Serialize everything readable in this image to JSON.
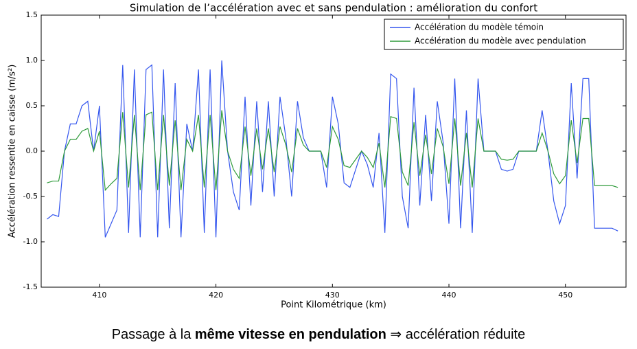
{
  "chart_data": {
    "type": "line",
    "title": "Simulation de l’accélération avec et sans pendulation : amélioration du confort",
    "xlabel": "Point Kilométrique (km)",
    "ylabel": "Accélération ressentie en caisse (m/s²)",
    "x": [
      405.5,
      406,
      406.5,
      407,
      407.5,
      408,
      408.5,
      409,
      409.5,
      410,
      410.5,
      411,
      411.5,
      412,
      412.5,
      413,
      413.5,
      414,
      414.5,
      415,
      415.5,
      416,
      416.5,
      417,
      417.5,
      418,
      418.5,
      419,
      419.5,
      420,
      420.5,
      421,
      421.5,
      422,
      422.5,
      423,
      423.5,
      424,
      424.5,
      425,
      425.5,
      426,
      426.5,
      427,
      427.5,
      428,
      428.5,
      429,
      429.5,
      430,
      430.5,
      431,
      431.5,
      432,
      432.5,
      433,
      433.5,
      434,
      434.5,
      435,
      435.5,
      436,
      436.5,
      437,
      437.5,
      438,
      438.5,
      439,
      439.5,
      440,
      440.5,
      441,
      441.5,
      442,
      442.5,
      443,
      443.5,
      444,
      444.5,
      445,
      445.5,
      446,
      446.5,
      447,
      447.5,
      448,
      448.5,
      449,
      449.5,
      450,
      450.5,
      451,
      451.5,
      452,
      452.5,
      453,
      453.5,
      454,
      454.5
    ],
    "series": [
      {
        "name": "Accélération du modèle témoin",
        "color": "#3355ee",
        "values": [
          -0.75,
          -0.7,
          -0.72,
          0,
          0.3,
          0.3,
          0.5,
          0.55,
          0,
          0.5,
          -0.95,
          -0.8,
          -0.65,
          0.95,
          -0.9,
          0.9,
          -0.95,
          0.9,
          0.95,
          -0.95,
          0.9,
          -0.85,
          0.75,
          -0.95,
          0.3,
          0,
          0.9,
          -0.9,
          0.9,
          -0.95,
          1.0,
          0,
          -0.45,
          -0.65,
          0.6,
          -0.6,
          0.55,
          -0.45,
          0.55,
          -0.5,
          0.6,
          0.15,
          -0.5,
          0.55,
          0.15,
          0,
          0,
          0,
          -0.4,
          0.6,
          0.3,
          -0.35,
          -0.4,
          -0.2,
          0,
          -0.15,
          -0.4,
          0.2,
          -0.9,
          0.85,
          0.8,
          -0.5,
          -0.85,
          0.7,
          -0.6,
          0.4,
          -0.55,
          0.55,
          0.1,
          -0.8,
          0.8,
          -0.85,
          0.45,
          -0.9,
          0.8,
          0,
          0,
          0,
          -0.2,
          -0.22,
          -0.2,
          0,
          0,
          0,
          0,
          0.45,
          0,
          -0.55,
          -0.8,
          -0.6,
          0.75,
          -0.3,
          0.8,
          0.8,
          -0.85,
          -0.85,
          -0.85,
          -0.85,
          -0.88
        ]
      },
      {
        "name": "Accélération du modèle avec pendulation",
        "color": "#2e9a3a",
        "values": [
          -0.35,
          -0.33,
          -0.33,
          0,
          0.13,
          0.13,
          0.22,
          0.25,
          0,
          0.22,
          -0.43,
          -0.36,
          -0.3,
          0.43,
          -0.4,
          0.4,
          -0.43,
          0.4,
          0.43,
          -0.43,
          0.4,
          -0.38,
          0.34,
          -0.43,
          0.13,
          0,
          0.4,
          -0.4,
          0.4,
          -0.43,
          0.45,
          0,
          -0.2,
          -0.3,
          0.27,
          -0.27,
          0.25,
          -0.2,
          0.25,
          -0.23,
          0.27,
          0.07,
          -0.23,
          0.25,
          0.07,
          0,
          0,
          0,
          -0.18,
          0.27,
          0.13,
          -0.16,
          -0.18,
          -0.09,
          0,
          -0.07,
          -0.18,
          0.09,
          -0.4,
          0.38,
          0.36,
          -0.23,
          -0.38,
          0.32,
          -0.27,
          0.18,
          -0.25,
          0.25,
          0.05,
          -0.36,
          0.36,
          -0.38,
          0.2,
          -0.4,
          0.36,
          0,
          0,
          0,
          -0.09,
          -0.1,
          -0.09,
          0,
          0,
          0,
          0,
          0.2,
          0,
          -0.25,
          -0.36,
          -0.27,
          0.34,
          -0.13,
          0.36,
          0.36,
          -0.38,
          -0.38,
          -0.38,
          -0.38,
          -0.4
        ]
      }
    ],
    "xlim": [
      405,
      455.2
    ],
    "xticks": [
      410,
      420,
      430,
      440,
      450
    ],
    "ylim": [
      -1.5,
      1.5
    ],
    "yticks": [
      -1.5,
      {
        "value": -1,
        "label": "-1.0"
      },
      -0.5,
      {
        "value": 0,
        "label": "0.0"
      },
      0.5,
      {
        "value": 1,
        "label": "1.0"
      },
      1.5
    ],
    "grid": false,
    "legend": "upper right"
  },
  "caption": {
    "before": "Passage à la ",
    "bold": "même vitesse en pendulation",
    "after": " ⇒ accélération réduite"
  }
}
